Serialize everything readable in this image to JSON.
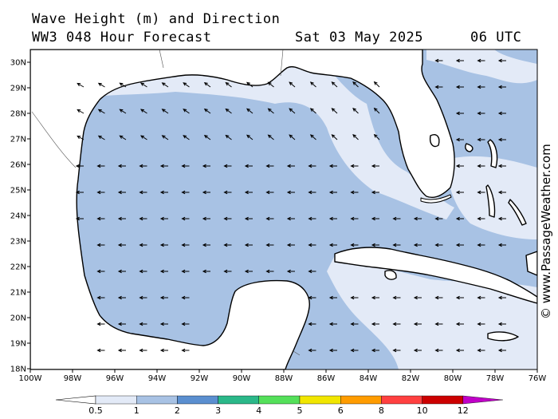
{
  "title_line1": "Wave Height (m) and Direction",
  "title_line2": "WW3 048 Hour Forecast",
  "valid_date": "Sat 03 May 2025",
  "valid_time": "06 UTC",
  "credit": "© www.PassageWeather.com",
  "map": {
    "lon_labels": [
      "100W",
      "98W",
      "96W",
      "94W",
      "92W",
      "90W",
      "88W",
      "86W",
      "84W",
      "82W",
      "80W",
      "78W",
      "76W"
    ],
    "lat_labels": [
      "30N",
      "29N",
      "28N",
      "27N",
      "26N",
      "25N",
      "24N",
      "23N",
      "22N",
      "21N",
      "20N",
      "19N",
      "18N"
    ],
    "land_color": "#ffffff",
    "wave_direction": "easterly (arrows point west, northwest over the northern gulf)"
  },
  "legend": {
    "tick_labels": [
      "0.5",
      "1",
      "2",
      "3",
      "4",
      "5",
      "6",
      "8",
      "10",
      "12"
    ],
    "colors": [
      "#e3eaf7",
      "#a8c2e4",
      "#5b8fd0",
      "#2bb889",
      "#54e05a",
      "#f1e600",
      "#ff9c00",
      "#ff4040",
      "#cc0000",
      "#c000c8"
    ]
  }
}
